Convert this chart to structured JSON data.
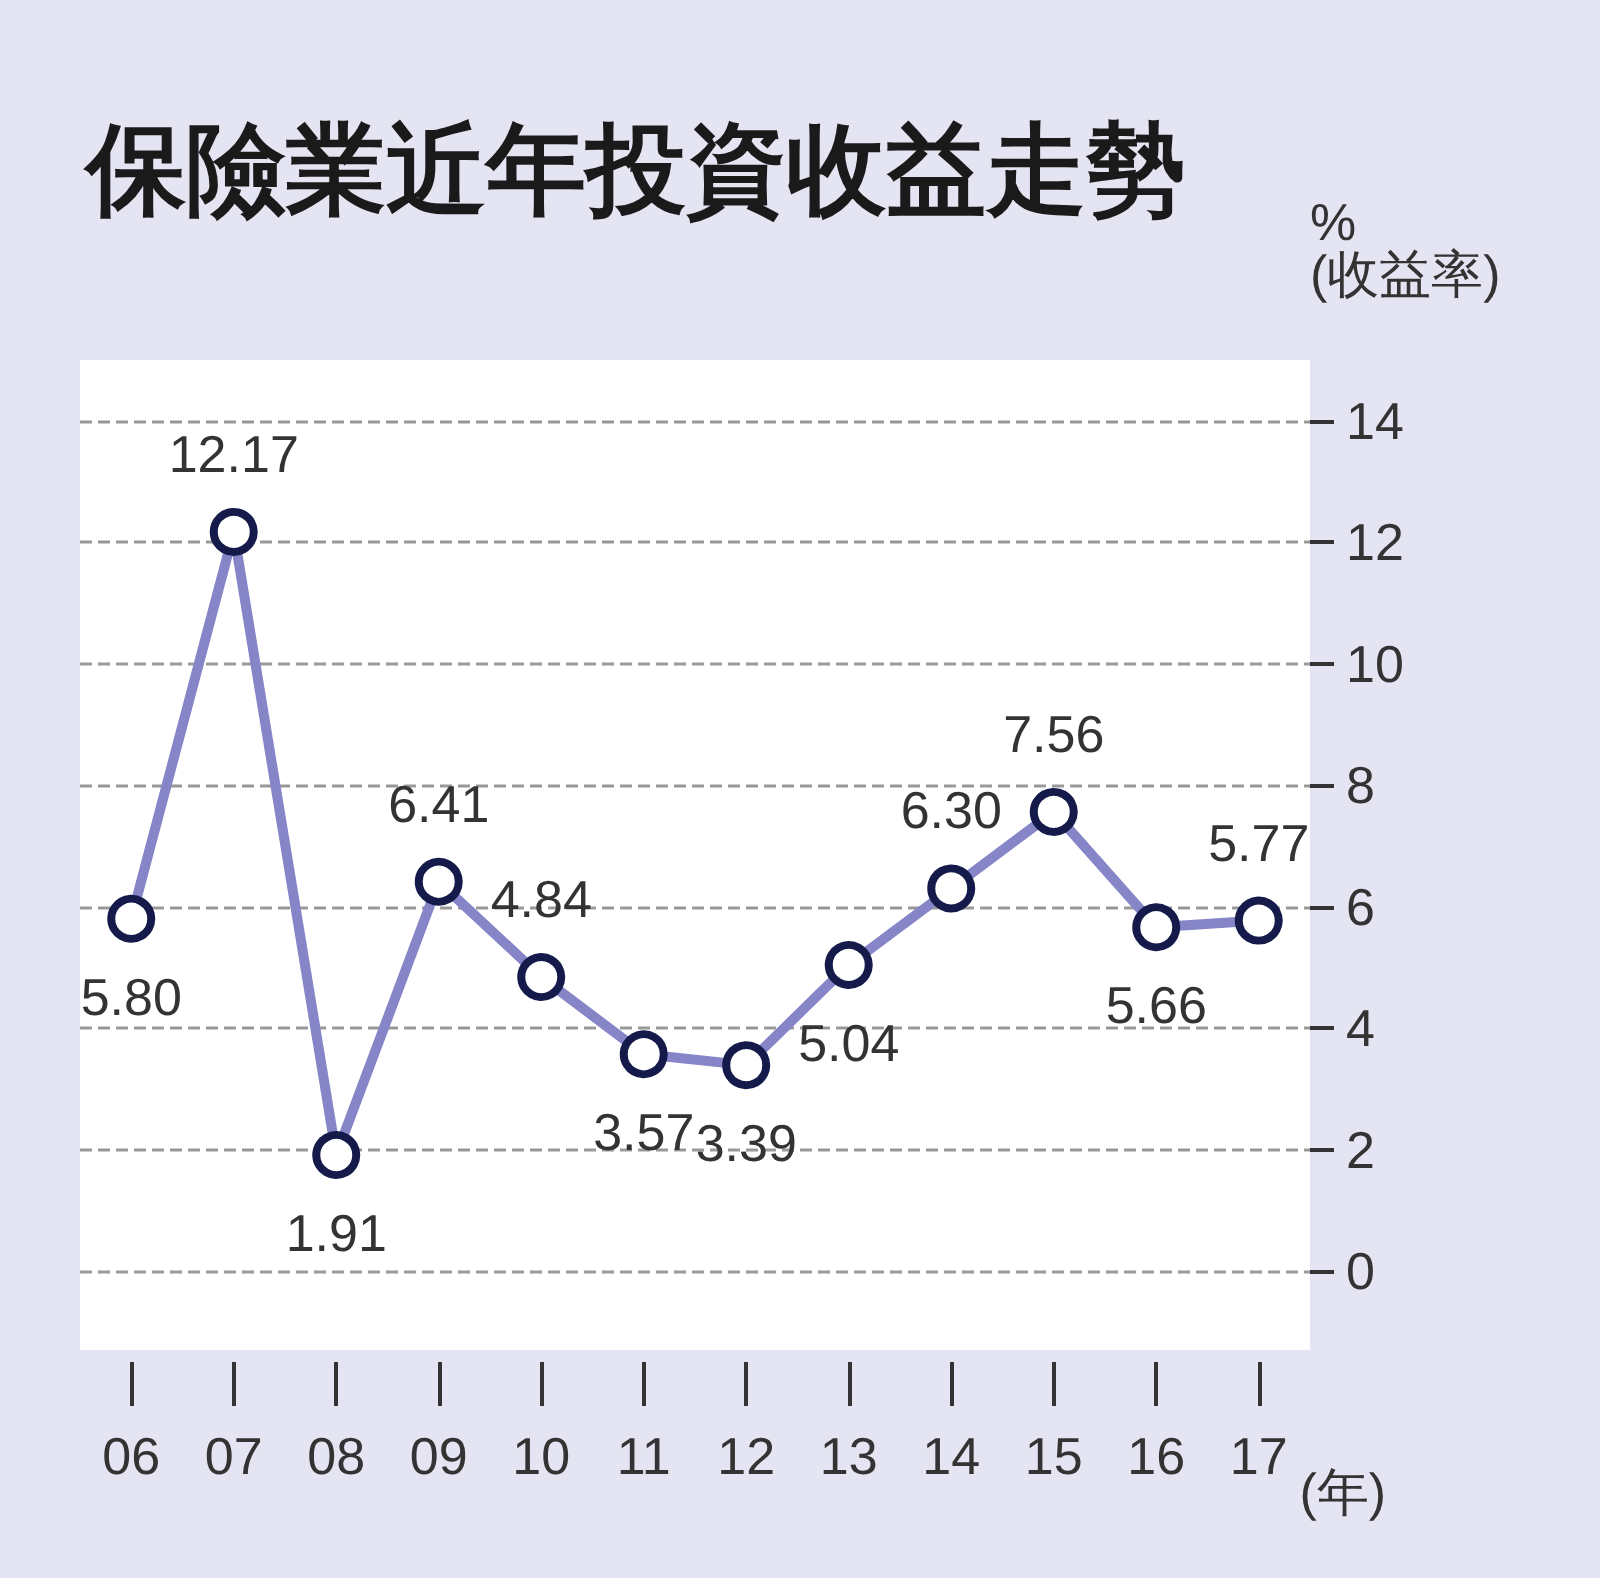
{
  "chart_data": {
    "type": "line",
    "title": "保險業近年投資收益走勢",
    "ylabel": "%\n(收益率)",
    "xlabel": "(年)",
    "categories": [
      "06",
      "07",
      "08",
      "09",
      "10",
      "11",
      "12",
      "13",
      "14",
      "15",
      "16",
      "17"
    ],
    "series": [
      {
        "color": "#8585c8",
        "values": [
          5.8,
          12.17,
          1.91,
          6.41,
          4.84,
          3.57,
          3.39,
          5.04,
          6.3,
          7.56,
          5.66,
          5.77
        ],
        "value_labels": [
          "5.80",
          "12.17",
          "1.91",
          "6.41",
          "4.84",
          "3.57",
          "3.39",
          "5.04",
          "6.30",
          "7.56",
          "5.66",
          "5.77"
        ]
      }
    ],
    "ylim": [
      -1.3,
      15
    ],
    "yticks": [
      0,
      2,
      4,
      6,
      8,
      10,
      12,
      14
    ],
    "grid": "y",
    "marker": "circle",
    "line_style": "solid"
  }
}
